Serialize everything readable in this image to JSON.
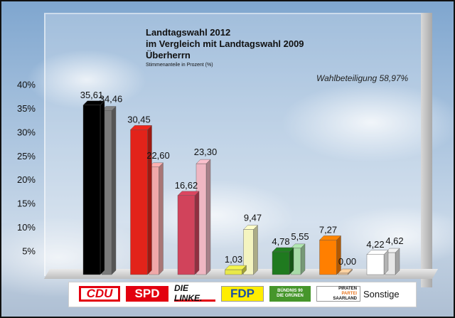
{
  "chart_data": {
    "type": "bar",
    "title": "Landtagswahl 2012",
    "subtitle_lines": [
      "im Vergleich mit Landtagswahl 2009",
      "Überherrn"
    ],
    "note": "Stimmenanteile in Prozent (%)",
    "turnout_label": "Wahlbeteiligung 58,97%",
    "categories": [
      "CDU",
      "SPD",
      "DIE LINKE.",
      "FDP",
      "BÜNDNIS 90 DIE GRÜNEN",
      "PIRATEN PARTEI SAARLAND",
      "Sonstige"
    ],
    "series": [
      {
        "name": "2012",
        "values": [
          35.61,
          30.45,
          16.62,
          1.03,
          4.78,
          7.27,
          4.22
        ],
        "labels": [
          "35,61",
          "30,45",
          "16,62",
          "1,03",
          "4,78",
          "7,27",
          "4,22"
        ]
      },
      {
        "name": "2009",
        "values": [
          34.46,
          22.6,
          23.3,
          9.47,
          5.55,
          0.0,
          4.62
        ],
        "labels": [
          "34,46",
          "22,60",
          "23,30",
          "9,47",
          "5,55",
          "0,00",
          "4,62"
        ]
      }
    ],
    "colors_2012": [
      "#000000",
      "#e2231a",
      "#d1435b",
      "#e8e84a",
      "#1f7a1f",
      "#ff7f00",
      "#ffffff"
    ],
    "colors_2009": [
      "#7a7a7a",
      "#f0a8a8",
      "#efb7c3",
      "#f4f4c0",
      "#a8dba8",
      "#f6c99a",
      "#e6e6e6"
    ],
    "yticks": [
      "5%",
      "10%",
      "15%",
      "20%",
      "25%",
      "30%",
      "35%",
      "40%"
    ],
    "ylim": [
      0,
      40
    ],
    "grid": false,
    "legend": "bottom (party logos)"
  },
  "legend_logos": {
    "cdu": "CDU",
    "spd": "SPD",
    "linke": "DIE LINKE.",
    "fdp": "FDP",
    "gruene_line1": "BÜNDNIS 90",
    "gruene_line2": "DIE GRÜNEN",
    "piraten_line1": "PIRATEN",
    "piraten_line2": "PARTEI",
    "piraten_line3": "SAARLAND",
    "sonstige": "Sonstige"
  }
}
